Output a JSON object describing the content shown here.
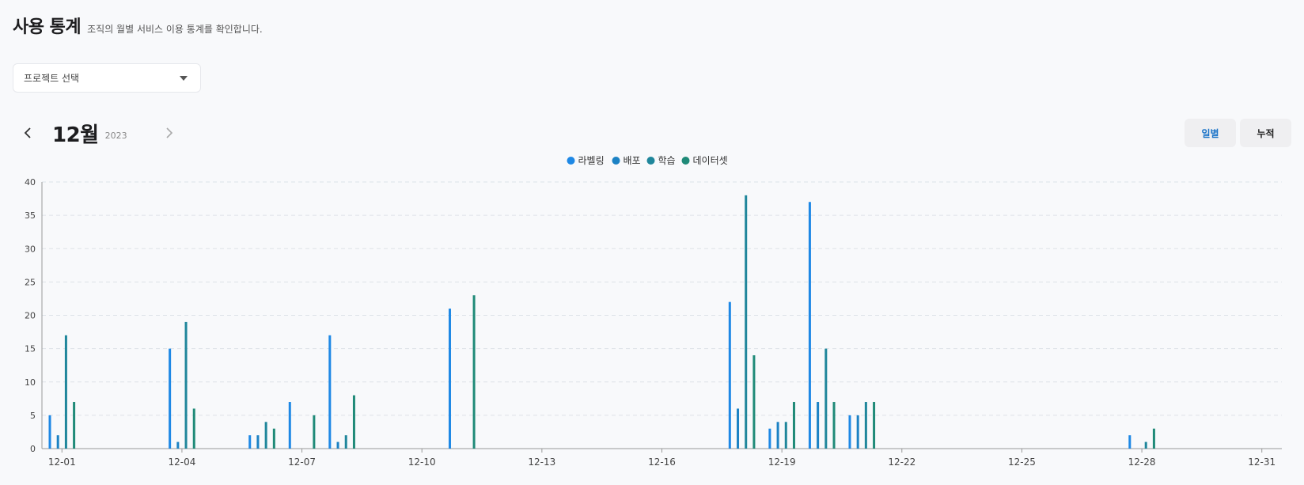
{
  "header": {
    "title": "사용 통계",
    "subtitle": "조직의 월별 서비스 이용 통계를 확인합니다."
  },
  "project_select": {
    "label": "프로젝트 선택"
  },
  "month_nav": {
    "month": "12월",
    "year": "2023"
  },
  "view_toggle": {
    "daily_label": "일별",
    "cumulative_label": "누적",
    "active": "daily"
  },
  "colors": {
    "labeling": "#1e88e5",
    "deploy": "#1c82c4",
    "training": "#1f869b",
    "dataset": "#1f8a78",
    "grid": "#dde2e8",
    "axis_text": "#444"
  },
  "chart_data": {
    "type": "bar",
    "title": "",
    "xlabel": "",
    "ylabel": "",
    "ylim": [
      0,
      40
    ],
    "yticks": [
      0,
      5,
      10,
      15,
      20,
      25,
      30,
      35,
      40
    ],
    "grid": true,
    "legend_position": "top-center",
    "categories": [
      "12-01",
      "12-02",
      "12-03",
      "12-04",
      "12-05",
      "12-06",
      "12-07",
      "12-08",
      "12-09",
      "12-10",
      "12-11",
      "12-12",
      "12-13",
      "12-14",
      "12-15",
      "12-16",
      "12-17",
      "12-18",
      "12-19",
      "12-20",
      "12-21",
      "12-22",
      "12-23",
      "12-24",
      "12-25",
      "12-26",
      "12-27",
      "12-28",
      "12-29",
      "12-30",
      "12-31"
    ],
    "xtick_labels": [
      "12-01",
      "12-04",
      "12-07",
      "12-10",
      "12-13",
      "12-16",
      "12-19",
      "12-22",
      "12-25",
      "12-28",
      "12-31"
    ],
    "series": [
      {
        "key": "labeling",
        "name": "라벨링",
        "values": [
          5,
          0,
          0,
          15,
          0,
          2,
          7,
          17,
          0,
          0,
          21,
          0,
          0,
          0,
          0,
          0,
          0,
          22,
          3,
          37,
          5,
          0,
          0,
          0,
          0,
          0,
          0,
          2,
          0,
          0,
          0
        ]
      },
      {
        "key": "deploy",
        "name": "배포",
        "values": [
          2,
          0,
          0,
          1,
          0,
          2,
          0,
          1,
          0,
          0,
          0,
          0,
          0,
          0,
          0,
          0,
          0,
          6,
          4,
          7,
          5,
          0,
          0,
          0,
          0,
          0,
          0,
          0,
          0,
          0,
          0
        ]
      },
      {
        "key": "training",
        "name": "학습",
        "values": [
          17,
          0,
          0,
          19,
          0,
          4,
          0,
          2,
          0,
          0,
          0,
          0,
          0,
          0,
          0,
          0,
          0,
          38,
          4,
          15,
          7,
          0,
          0,
          0,
          0,
          0,
          0,
          1,
          0,
          0,
          0
        ]
      },
      {
        "key": "dataset",
        "name": "데이터셋",
        "values": [
          7,
          0,
          0,
          6,
          0,
          3,
          5,
          8,
          0,
          0,
          23,
          0,
          0,
          0,
          0,
          0,
          0,
          14,
          7,
          7,
          7,
          0,
          0,
          0,
          0,
          0,
          0,
          3,
          0,
          0,
          0
        ]
      }
    ]
  }
}
